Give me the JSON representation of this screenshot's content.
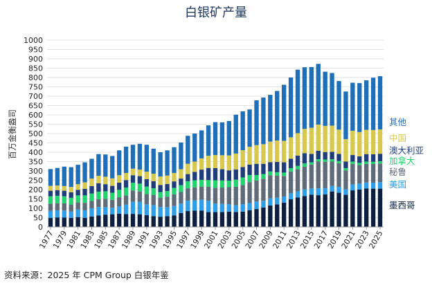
{
  "chart_data": {
    "type": "bar",
    "stacked": true,
    "title": "白银矿产量",
    "ylabel": "百万金衡盎司",
    "xlabel": "",
    "ylim": [
      0,
      1000
    ],
    "yticks": [
      0,
      50,
      100,
      150,
      200,
      250,
      300,
      350,
      400,
      450,
      500,
      550,
      600,
      650,
      700,
      750,
      800,
      850,
      900,
      950,
      1000
    ],
    "grid": true,
    "legend_position": "right",
    "categories": [
      1977,
      1978,
      1979,
      1980,
      1981,
      1982,
      1983,
      1984,
      1985,
      1986,
      1987,
      1988,
      1989,
      1990,
      1991,
      1992,
      1993,
      1994,
      1995,
      1996,
      1997,
      1998,
      1999,
      2000,
      2001,
      2002,
      2003,
      2004,
      2005,
      2006,
      2007,
      2008,
      2009,
      2010,
      2011,
      2012,
      2013,
      2014,
      2015,
      2016,
      2017,
      2018,
      2019,
      2020,
      2021,
      2022,
      2023,
      2024,
      2025
    ],
    "x_tick_labels": [
      "1977",
      "1979",
      "1981",
      "1983",
      "1985",
      "1987",
      "1989",
      "1991",
      "1993",
      "1995",
      "1997",
      "1999",
      "2001",
      "2003",
      "2005",
      "2007",
      "2009",
      "2011",
      "2013",
      "2015",
      "2017",
      "2019",
      "2021",
      "2023",
      "2025"
    ],
    "series": [
      {
        "name": "墨西哥",
        "color": "#0c1f3f",
        "values": [
          48,
          51,
          50,
          49,
          53,
          49,
          56,
          62,
          66,
          68,
          71,
          69,
          70,
          68,
          63,
          58,
          55,
          58,
          62,
          75,
          85,
          87,
          88,
          80,
          80,
          80,
          82,
          80,
          82,
          90,
          96,
          104,
          115,
          121,
          130,
          148,
          158,
          165,
          173,
          170,
          174,
          190,
          183,
          172,
          196,
          200,
          206,
          205,
          205
        ]
      },
      {
        "name": "美国",
        "color": "#2e9ee8",
        "values": [
          38,
          38,
          38,
          33,
          41,
          40,
          44,
          45,
          40,
          35,
          40,
          50,
          65,
          67,
          58,
          59,
          52,
          48,
          50,
          50,
          55,
          55,
          58,
          60,
          45,
          43,
          40,
          36,
          40,
          38,
          40,
          36,
          38,
          36,
          33,
          33,
          33,
          36,
          33,
          37,
          33,
          30,
          32,
          30,
          32,
          32,
          32,
          32,
          35
        ]
      },
      {
        "name": "秘鲁",
        "color": "#5f6b78",
        "values": [
          38,
          38,
          38,
          38,
          38,
          40,
          39,
          42,
          45,
          42,
          48,
          50,
          60,
          55,
          55,
          55,
          50,
          56,
          62,
          62,
          67,
          70,
          70,
          75,
          85,
          88,
          91,
          99,
          103,
          112,
          112,
          118,
          124,
          118,
          110,
          116,
          118,
          121,
          128,
          144,
          142,
          130,
          126,
          101,
          110,
          99,
          100,
          100,
          100
        ]
      },
      {
        "name": "加拿大",
        "color": "#22d36e",
        "values": [
          40,
          40,
          38,
          36,
          37,
          40,
          40,
          40,
          40,
          38,
          40,
          42,
          42,
          42,
          40,
          35,
          30,
          30,
          35,
          37,
          38,
          38,
          36,
          36,
          40,
          38,
          35,
          38,
          40,
          38,
          30,
          25,
          20,
          18,
          18,
          18,
          18,
          18,
          12,
          12,
          12,
          12,
          12,
          12,
          12,
          12,
          12,
          12,
          12
        ]
      },
      {
        "name": "澳大利亚",
        "color": "#1f3d7a",
        "values": [
          30,
          30,
          30,
          30,
          30,
          35,
          40,
          45,
          38,
          37,
          38,
          40,
          40,
          40,
          40,
          38,
          38,
          38,
          35,
          35,
          38,
          45,
          55,
          65,
          65,
          60,
          55,
          55,
          56,
          56,
          60,
          55,
          50,
          55,
          55,
          50,
          55,
          55,
          45,
          45,
          40,
          40,
          38,
          35,
          35,
          35,
          40,
          40,
          40
        ]
      },
      {
        "name": "中国",
        "color": "#d7c94e",
        "values": [
          26,
          25,
          25,
          28,
          30,
          35,
          40,
          40,
          40,
          40,
          40,
          38,
          35,
          35,
          40,
          40,
          45,
          45,
          45,
          50,
          55,
          55,
          60,
          65,
          70,
          75,
          80,
          85,
          90,
          95,
          100,
          105,
          110,
          115,
          115,
          115,
          120,
          130,
          140,
          140,
          140,
          140,
          130,
          120,
          130,
          130,
          130,
          130,
          130
        ]
      },
      {
        "name": "其他",
        "color": "#1f6fb8",
        "values": [
          90,
          94,
          104,
          106,
          104,
          107,
          106,
          116,
          119,
          120,
          133,
          141,
          128,
          138,
          144,
          134,
          130,
          135,
          138,
          143,
          150,
          150,
          150,
          163,
          176,
          176,
          184,
          208,
          208,
          200,
          240,
          250,
          250,
          265,
          300,
          320,
          340,
          330,
          325,
          325,
          290,
          282,
          260,
          255,
          257,
          262,
          265,
          280,
          285
        ]
      }
    ]
  },
  "legend_order": [
    "其他",
    "中国",
    "澳大利亚",
    "加拿大",
    "秘鲁",
    "美国",
    "墨西哥"
  ],
  "source": "资料来源：2025 年 CPM Group 白银年鉴"
}
